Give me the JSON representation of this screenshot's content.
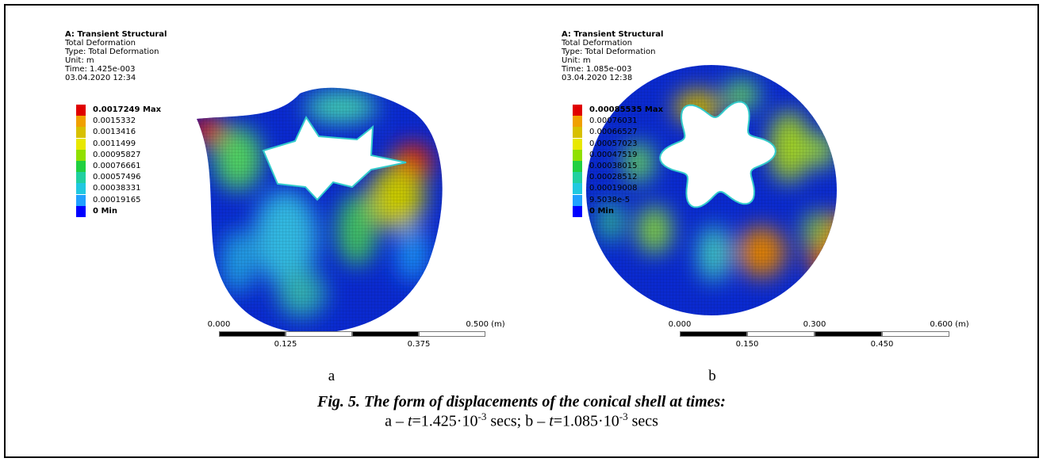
{
  "panels": [
    {
      "label": "a",
      "header": [
        "A: Transient Structural",
        "Total Deformation",
        "Type: Total Deformation",
        "Unit: m",
        "Time: 1.425e-003",
        "03.04.2020 12:34"
      ],
      "legend": [
        "0.0017249 Max",
        "0.0015332",
        "0.0013416",
        "0.0011499",
        "0.00095827",
        "0.00076661",
        "0.00057496",
        "0.00038331",
        "0.00019165",
        "0 Min"
      ],
      "scale": {
        "top": [
          "0.000",
          "0.500 (m)"
        ],
        "bottom": [
          "0.125",
          "0.375"
        ]
      }
    },
    {
      "label": "b",
      "header": [
        "A: Transient Structural",
        "Total Deformation",
        "Type: Total Deformation",
        "Unit: m",
        "Time: 1.085e-003",
        "03.04.2020 12:38"
      ],
      "legend": [
        "0.00085535 Max",
        "0.00076031",
        "0.00066527",
        "0.00057023",
        "0.00047519",
        "0.00038015",
        "0.00028512",
        "0.00019008",
        "9.5038e-5",
        "0 Min"
      ],
      "scale": {
        "top": [
          "0.000",
          "0.300",
          "0.600 (m)"
        ],
        "bottom": [
          "0.150",
          "0.450"
        ]
      }
    }
  ],
  "caption": {
    "title": "Fig. 5. The form of displacements of the conical shell at times:",
    "line2": [
      "a – ",
      "t",
      "=1.425·10",
      "-3",
      " secs; b – ",
      "t",
      "=1.085·10",
      "-3",
      " secs"
    ]
  }
}
